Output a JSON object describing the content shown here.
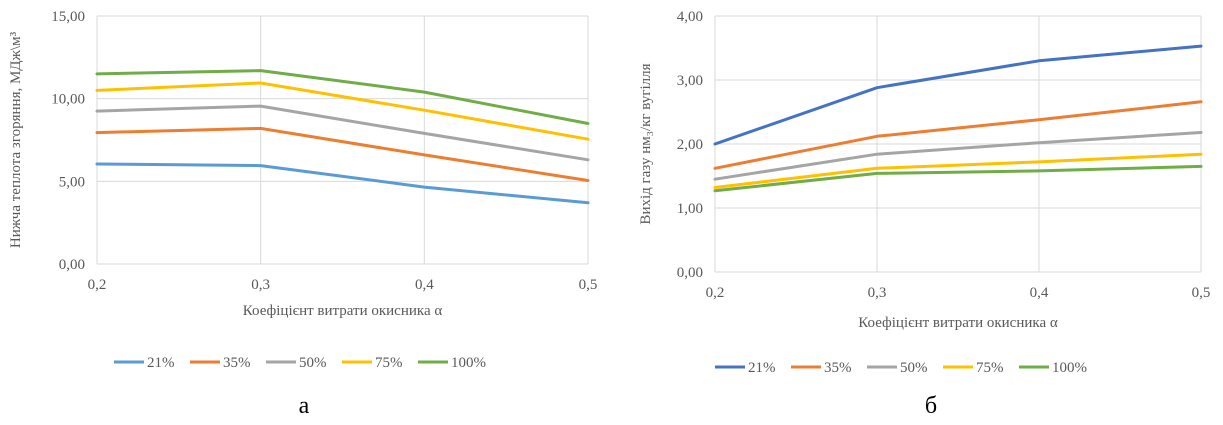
{
  "chart_data": [
    {
      "type": "line",
      "caption": "а",
      "xlabel": "Коефіцієнт витрати окисника α",
      "ylabel": "Нижча теплота згоряння, МДж\\м³",
      "x": [
        "0,2",
        "0,3",
        "0,4",
        "0,5"
      ],
      "ylim": [
        0,
        15
      ],
      "yticks": [
        "0,00",
        "5,00",
        "10,00",
        "15,00"
      ],
      "grid": true,
      "legend": "bottom",
      "series": [
        {
          "name": "21%",
          "color": "#5B9BD5",
          "values": [
            6.05,
            5.95,
            4.65,
            3.7
          ]
        },
        {
          "name": "35%",
          "color": "#ED7D31",
          "values": [
            7.95,
            8.2,
            6.6,
            5.05
          ]
        },
        {
          "name": "50%",
          "color": "#A5A5A5",
          "values": [
            9.25,
            9.55,
            7.9,
            6.3
          ]
        },
        {
          "name": "75%",
          "color": "#FFC000",
          "values": [
            10.5,
            10.95,
            9.3,
            7.55
          ]
        },
        {
          "name": "100%",
          "color": "#70AD47",
          "values": [
            11.5,
            11.7,
            10.4,
            8.5
          ]
        }
      ]
    },
    {
      "type": "line",
      "caption": "б",
      "xlabel": "Коефіцієнт витрати окисника α",
      "ylabel": "Вихід газу нм₃/кг вугілля",
      "x": [
        "0,2",
        "0,3",
        "0,4",
        "0,5"
      ],
      "ylim": [
        0,
        4
      ],
      "yticks": [
        "0,00",
        "1,00",
        "2,00",
        "3,00",
        "4,00"
      ],
      "grid": true,
      "legend": "bottom",
      "series": [
        {
          "name": "21%",
          "color": "#4472C4",
          "values": [
            2.0,
            2.88,
            3.3,
            3.53
          ]
        },
        {
          "name": "35%",
          "color": "#ED7D31",
          "values": [
            1.62,
            2.12,
            2.38,
            2.66
          ]
        },
        {
          "name": "50%",
          "color": "#A5A5A5",
          "values": [
            1.45,
            1.84,
            2.02,
            2.18
          ]
        },
        {
          "name": "75%",
          "color": "#FFC000",
          "values": [
            1.32,
            1.62,
            1.72,
            1.84
          ]
        },
        {
          "name": "100%",
          "color": "#70AD47",
          "values": [
            1.27,
            1.54,
            1.58,
            1.65
          ]
        }
      ]
    }
  ]
}
